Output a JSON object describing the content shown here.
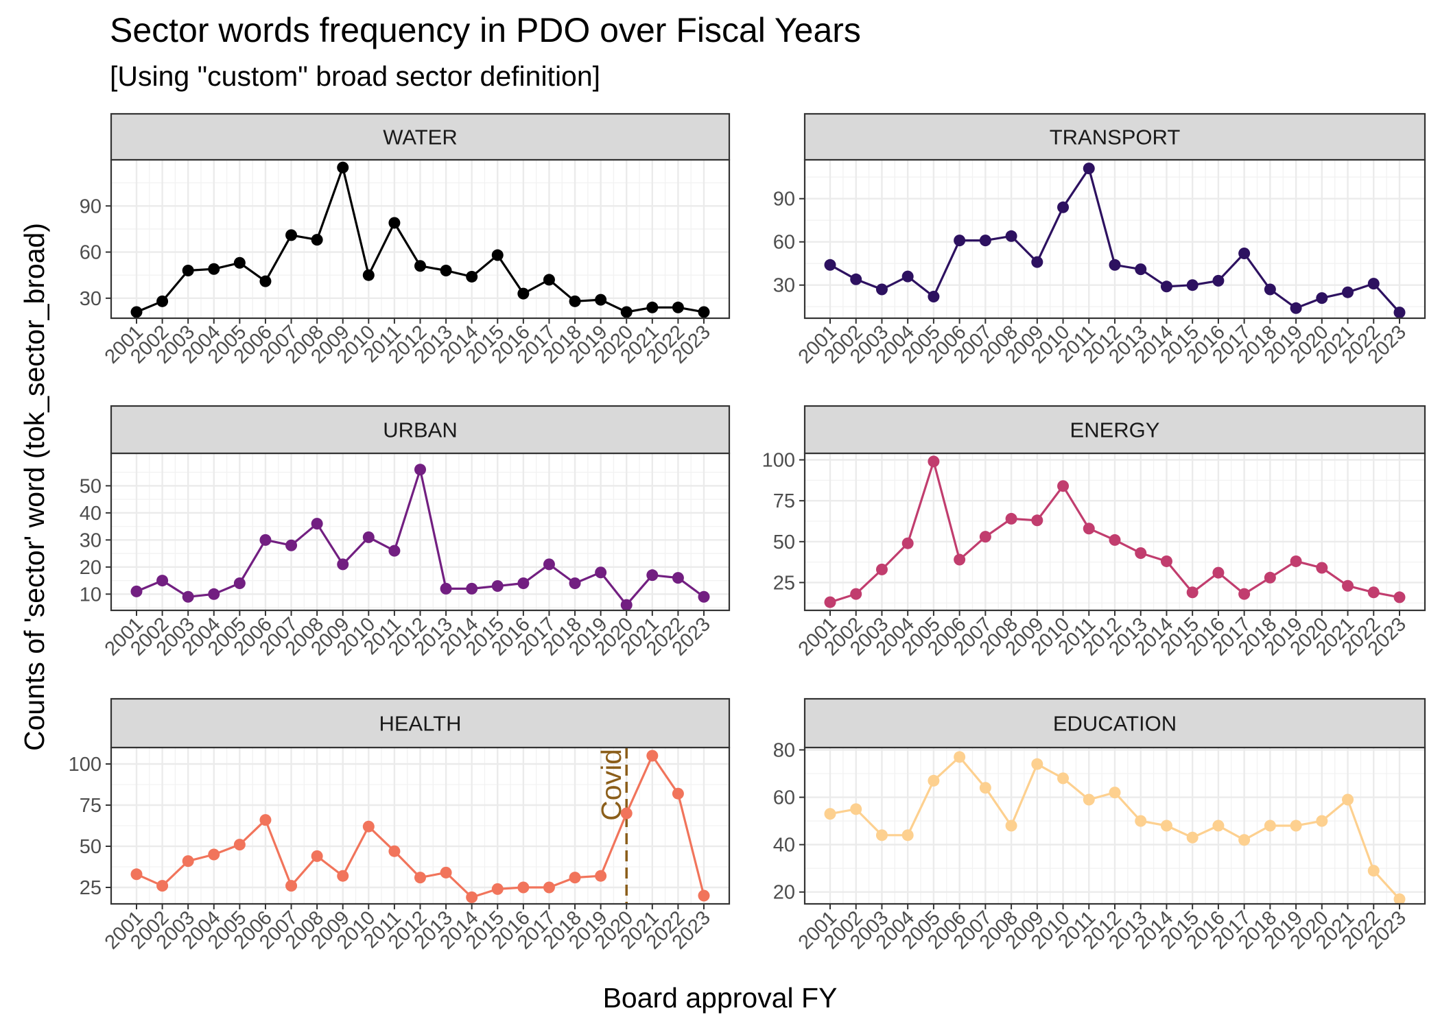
{
  "chart": {
    "title": "Sector words frequency in PDO over Fiscal Years",
    "subtitle": "[Using \"custom\" broad sector definition]",
    "xlabel": "Board approval FY",
    "ylabel": "Counts of 'sector' word (tok_sector_broad)"
  },
  "chart_data": {
    "type": "line",
    "title": "Sector words frequency in PDO over Fiscal Years",
    "subtitle": "[Using \"custom\" broad sector definition]",
    "xlabel": "Board approval FY",
    "ylabel": "Counts of 'sector' word (tok_sector_broad)",
    "grid": true,
    "x": [
      "2001",
      "2002",
      "2003",
      "2004",
      "2005",
      "2006",
      "2007",
      "2008",
      "2009",
      "2010",
      "2011",
      "2012",
      "2013",
      "2014",
      "2015",
      "2016",
      "2017",
      "2018",
      "2019",
      "2020",
      "2021",
      "2022",
      "2023"
    ],
    "panels": [
      {
        "name": "WATER",
        "color": "#000000",
        "ylim": [
          17,
          120
        ],
        "ticks": [
          30,
          60,
          90
        ],
        "values": [
          21,
          28,
          48,
          49,
          53,
          41,
          71,
          68,
          115,
          45,
          79,
          51,
          48,
          44,
          58,
          33,
          42,
          28,
          29,
          21,
          24,
          24,
          21
        ]
      },
      {
        "name": "TRANSPORT",
        "color": "#2D1160",
        "ylim": [
          7,
          117
        ],
        "ticks": [
          30,
          60,
          90
        ],
        "values": [
          44,
          34,
          27,
          36,
          22,
          61,
          61,
          64,
          46,
          84,
          111,
          44,
          41,
          29,
          30,
          33,
          52,
          27,
          14,
          21,
          25,
          31,
          11
        ]
      },
      {
        "name": "URBAN",
        "color": "#721F81",
        "ylim": [
          4,
          62
        ],
        "ticks": [
          10,
          20,
          30,
          40,
          50
        ],
        "values": [
          11,
          15,
          9,
          10,
          14,
          30,
          28,
          36,
          21,
          31,
          26,
          56,
          12,
          12,
          13,
          14,
          21,
          14,
          18,
          6,
          17,
          16,
          9
        ]
      },
      {
        "name": "ENERGY",
        "color": "#C13D6E",
        "ylim": [
          8,
          104
        ],
        "ticks": [
          25,
          50,
          75,
          100
        ],
        "values": [
          13,
          18,
          33,
          49,
          99,
          39,
          53,
          64,
          63,
          84,
          58,
          51,
          43,
          38,
          19,
          31,
          18,
          28,
          38,
          34,
          23,
          19,
          16
        ]
      },
      {
        "name": "HEALTH",
        "color": "#F1745B",
        "ylim": [
          15,
          110
        ],
        "ticks": [
          25,
          50,
          75,
          100
        ],
        "values": [
          33,
          26,
          41,
          45,
          51,
          66,
          26,
          44,
          32,
          62,
          47,
          31,
          34,
          19,
          24,
          25,
          25,
          31,
          32,
          70,
          105,
          82,
          20
        ],
        "annotations": [
          {
            "type": "vline",
            "x": "2020",
            "label": "Covid",
            "color": "#8B5E1A"
          }
        ]
      },
      {
        "name": "EDUCATION",
        "color": "#FDD08F",
        "ylim": [
          15,
          81
        ],
        "ticks": [
          20,
          40,
          60,
          80
        ],
        "values": [
          53,
          55,
          44,
          44,
          67,
          77,
          64,
          48,
          74,
          68,
          59,
          62,
          50,
          48,
          43,
          48,
          42,
          48,
          48,
          50,
          59,
          29,
          17
        ]
      }
    ]
  }
}
